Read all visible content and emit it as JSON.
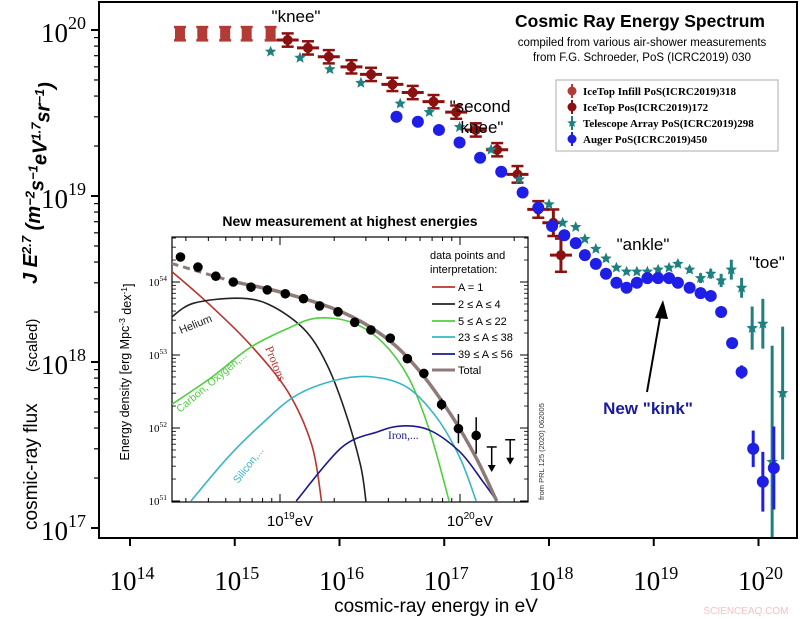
{
  "colors": {
    "icetop_infill": "#b23b35",
    "icetop": "#8b1010",
    "telescope_array": "#1f8080",
    "auger": "#1e1ee6",
    "annotation_kink": "#1a1aa0",
    "watermark": "#f2c4c4",
    "protons": "#b8342e",
    "helium": "#222222",
    "cno": "#4fcf3f",
    "silicon": "#39b6c6",
    "iron": "#1a1a8a",
    "total": "#8e7b78"
  },
  "watermark": "SCIENCEAQ.COM",
  "chart_data": [
    {
      "type": "scatter",
      "title": "Cosmic Ray Energy Spectrum",
      "subtitle": [
        "compiled from various air-shower measurements",
        "from F.G. Schroeder, PoS (ICRC2019) 030"
      ],
      "xlabel": "cosmic-ray energy in eV",
      "ylabel": "cosmic-ray flux",
      "ylabel_note": "(scaled)",
      "ylabel_formula": "J E^{2.7} (m^{−2}s^{−1}eV^{1.7}sr^{−1})",
      "xscale": "log",
      "yscale": "log",
      "xlim": [
        100000000000000.0,
        1.6e+20
      ],
      "ylim": [
        9e+16,
        1.5e+20
      ],
      "xticks": [
        100000000000000.0,
        1000000000000000.0,
        1e+16,
        1e+17,
        1e+18,
        1e+19,
        1e+20
      ],
      "xtick_labels": [
        [
          "10",
          "14"
        ],
        [
          "10",
          "15"
        ],
        [
          "10",
          "16"
        ],
        [
          "10",
          "17"
        ],
        [
          "10",
          "18"
        ],
        [
          "10",
          "19"
        ],
        [
          "10",
          "20"
        ]
      ],
      "yticks": [
        1e+17,
        1e+18,
        1e+19,
        1e+20
      ],
      "ytick_labels": [
        [
          "10",
          "17"
        ],
        [
          "10",
          "18"
        ],
        [
          "10",
          "19"
        ],
        [
          "10",
          "20"
        ]
      ],
      "grid": false,
      "legend_position": "top-right",
      "annotations": [
        {
          "text": "\"knee\""
        },
        {
          "text": "\"second"
        },
        {
          "text": "knee\""
        },
        {
          "text": "\"ankle\""
        },
        {
          "text": "\"toe\""
        },
        {
          "text": "New \"kink\""
        }
      ],
      "series": [
        {
          "name": "IceTop Infill PoS(ICRC2019)318",
          "color_key": "icetop_infill",
          "marker": "bar",
          "x": [
            300000000000000.0,
            490000000000000.0,
            810000000000000.0,
            1300000000000000.0,
            2200000000000000.0
          ],
          "y": [
            9.5e+19,
            9.5e+19,
            9.5e+19,
            9.5e+19,
            9.5e+19
          ],
          "err_dex": [
            0.04,
            0.04,
            0.04,
            0.04,
            0.04
          ]
        },
        {
          "name": "IceTop Pos(ICRC2019)172",
          "color_key": "icetop",
          "marker": "circle-hbar",
          "x": [
            3200000000000000.0,
            5000000000000000.0,
            7900000000000000.0,
            1.3e+16,
            2e+16,
            3.2e+16,
            5e+16,
            7.9e+16,
            1.3e+17,
            2e+17,
            3.2e+17,
            5e+17,
            7.9e+17,
            1.1e+18,
            1.3e+18
          ],
          "y": [
            8.7e+19,
            7.8e+19,
            6.9e+19,
            6e+19,
            5.4e+19,
            4.7e+19,
            4.2e+19,
            3.7e+19,
            3.2e+19,
            2.5e+19,
            1.9e+19,
            1.35e+19,
            8.3e+18,
            6.9e+18,
            4.4e+18
          ],
          "err_dex": [
            0.04,
            0.04,
            0.04,
            0.04,
            0.04,
            0.04,
            0.04,
            0.04,
            0.04,
            0.04,
            0.04,
            0.05,
            0.05,
            0.08,
            0.1
          ]
        },
        {
          "name": "Telescope Array PoS(ICRC2019)298",
          "color_key": "telescope_array",
          "marker": "star",
          "x": [
            2200000000000000.0,
            4200000000000000.0,
            8100000000000000.0,
            1.6e+16,
            3.8e+16,
            7.2e+16,
            1.4e+17,
            2.8e+17,
            5.2e+17,
            1e+18,
            1.35e+18,
            1.8e+18,
            2.2e+18,
            2.8e+18,
            3.5e+18,
            4.4e+18,
            5.5e+18,
            6.9e+18,
            8.7e+18,
            1.1e+19,
            1.4e+19,
            1.7e+19,
            2.2e+19,
            2.8e+19,
            3.5e+19,
            4.4e+19,
            5.5e+19,
            6.9e+19,
            8.7e+19,
            1.1e+20,
            1.35e+20,
            1.7e+20
          ],
          "y": [
            7.4e+19,
            6.8e+19,
            5.8e+19,
            4.8e+19,
            3.6e+19,
            3.2e+19,
            2.6e+19,
            1.9e+19,
            1.26e+19,
            8.9e+18,
            6.9e+18,
            6.5e+18,
            5.5e+18,
            4.8e+18,
            4.2e+18,
            3.7e+18,
            3.5e+18,
            3.5e+18,
            3.5e+18,
            3.6e+18,
            3.7e+18,
            3.9e+18,
            3.6e+18,
            3.2e+18,
            3.4e+18,
            3.1e+18,
            3.6e+18,
            2.8e+18,
            1.6e+18,
            1.7e+18,
            2.5e+17,
            6.5e+17
          ],
          "err_dex": [
            0,
            0,
            0,
            0,
            0,
            0,
            0,
            0,
            0,
            0,
            0,
            0,
            0,
            0,
            0,
            0,
            0,
            0,
            0,
            0,
            0,
            0.02,
            0.02,
            0.03,
            0.03,
            0.04,
            0.06,
            0.06,
            0.13,
            0.15,
            0.7,
            0.4
          ]
        },
        {
          "name": "Auger PoS(ICRC2019)450",
          "color_key": "auger",
          "marker": "circle",
          "x": [
            3.5e+16,
            5.6e+16,
            8.9e+16,
            1.4e+17,
            2.2e+17,
            3.5e+17,
            5.6e+17,
            7.9e+17,
            1.07e+18,
            1.4e+18,
            1.8e+18,
            2.2e+18,
            2.8e+18,
            3.5e+18,
            4.4e+18,
            5.5e+18,
            6.9e+18,
            8.7e+18,
            1.1e+19,
            1.4e+19,
            1.7e+19,
            2.2e+19,
            2.8e+19,
            3.5e+19,
            4.4e+19,
            5.6e+19,
            6.9e+19,
            8.9e+19,
            1.1e+20,
            1.4e+20
          ],
          "y": [
            3e+19,
            2.8e+19,
            2.5e+19,
            2.1e+19,
            1.7e+19,
            1.4e+19,
            1.05e+19,
            8.5e+18,
            6.6e+18,
            5.8e+18,
            5.2e+18,
            4.4e+18,
            3.9e+18,
            3.4e+18,
            3e+18,
            2.8e+18,
            3e+18,
            3.2e+18,
            3.2e+18,
            3.2e+18,
            3e+18,
            2.8e+18,
            2.6e+18,
            2.5e+18,
            2e+18,
            1.3e+18,
            8.7e+17,
            3e+17,
            1.9e+17,
            2.3e+17
          ],
          "err_dex": [
            0,
            0,
            0,
            0,
            0,
            0,
            0,
            0,
            0,
            0,
            0,
            0,
            0,
            0,
            0,
            0,
            0,
            0,
            0,
            0,
            0,
            0,
            0,
            0,
            0.01,
            0.02,
            0.04,
            0.11,
            0.18,
            0.25
          ]
        }
      ]
    },
    {
      "type": "line",
      "title": "New measurement at highest energies",
      "ylabel": "Energy density [erg Mpc^{-3} dex^{-1}]",
      "xscale": "log",
      "yscale": "log",
      "xlim": [
        2.5e+18,
        1.85e+20
      ],
      "ylim": [
        1e+51,
        4e+54
      ],
      "xticks": [
        1e+19,
        1e+20
      ],
      "xtick_labels": [
        [
          "10",
          "19",
          "eV"
        ],
        [
          "10",
          "20",
          "eV"
        ]
      ],
      "yticks": [
        1e+51,
        1e+52,
        1e+53,
        1e+54
      ],
      "ytick_labels": [
        [
          "10",
          "51"
        ],
        [
          "10",
          "52"
        ],
        [
          "10",
          "53"
        ],
        [
          "10",
          "54"
        ]
      ],
      "grid": false,
      "legend_position": "top-right",
      "legend_title": [
        "data points and",
        "interpretation:"
      ],
      "source_note": "from PRL 125 (2020) 062005",
      "points": {
        "x": [
          2.8e+18,
          3.5e+18,
          4.4e+18,
          5.5e+18,
          6.9e+18,
          8.5e+18,
          1.07e+19,
          1.35e+19,
          1.66e+19,
          2.1e+19,
          2.6e+19,
          3.2e+19,
          4.1e+19,
          5.1e+19,
          6.3e+19,
          7.9e+19,
          9.8e+19,
          1.23e+20
        ],
        "y": [
          2.2e+54,
          1.6e+54,
          1.2e+54,
          1e+54,
          8.5e+53,
          7.8e+53,
          6.9e+53,
          5.9e+53,
          4.7e+53,
          3.9e+53,
          2.8e+53,
          2.2e+53,
          1.7e+53,
          8.9e+52,
          5.6e+52,
          2.1e+52,
          9.8e+51,
          7.9e+51
        ],
        "err_dex": [
          0,
          0,
          0,
          0,
          0,
          0,
          0,
          0,
          0,
          0,
          0,
          0,
          0,
          0,
          0,
          0.08,
          0.2,
          0.25
        ]
      },
      "upper_limits": {
        "x": [
          1.5e+20,
          1.9e+20
        ],
        "y": [
          5.5e+51,
          6.9e+51
        ]
      },
      "series": [
        {
          "name": "A = 1",
          "label": "Protons",
          "color_key": "protons",
          "x": [
            2.5e+18,
            4.1e+18,
            6.8e+18,
            1.1e+19,
            1.5e+19,
            1.7e+19
          ],
          "y": [
            1.4e+54,
            4.8e+53,
            1.4e+53,
            3.2e+52,
            5.9e+51,
            1e+51
          ]
        },
        {
          "name": "2 ≤ A ≤ 4",
          "label": "Helium",
          "color_key": "helium",
          "x": [
            2.5e+18,
            3.3e+18,
            5.8e+18,
            8.7e+18,
            1.35e+19,
            1.8e+19,
            2.3e+19,
            2.8e+19,
            3e+19
          ],
          "y": [
            3.3e+53,
            5.1e+53,
            6e+53,
            4.9e+53,
            2.3e+53,
            7.9e+52,
            1.7e+52,
            3.1e+51,
            1e+51
          ]
        },
        {
          "name": "5 ≤ A ≤ 22",
          "label": "Carbon, Oxygen,...",
          "color_key": "cno",
          "x": [
            2.5e+18,
            4.1e+18,
            6.8e+18,
            1.1e+19,
            1.6e+19,
            2.5e+19,
            3.7e+19,
            5.2e+19,
            6.8e+19,
            8.7e+19
          ],
          "y": [
            2.1e+52,
            4.8e+52,
            1.26e+53,
            2.3e+53,
            3.2e+53,
            2.8e+53,
            1.5e+53,
            4.8e+52,
            8.9e+51,
            1e+51
          ]
        },
        {
          "name": "23 ≤ A ≤ 38",
          "label": "Silicon,...",
          "color_key": "silicon",
          "x": [
            3.2e+18,
            5.1e+18,
            7.8e+18,
            1.23e+19,
            2.1e+19,
            3.3e+19,
            5.1e+19,
            7.4e+19,
            1e+20,
            1.23e+20
          ],
          "y": [
            1e+51,
            3.9e+51,
            1.1e+52,
            2.8e+52,
            4.6e+52,
            5e+52,
            3.6e+52,
            1.4e+52,
            3.9e+51,
            1e+51
          ]
        },
        {
          "name": "39 ≤ A ≤ 56",
          "label": "Iron,...",
          "color_key": "iron",
          "x": [
            1.23e+19,
            2.2e+19,
            3.5e+19,
            4.8e+19,
            6.8e+19,
            1e+20,
            1.35e+20,
            1.6e+20
          ],
          "y": [
            1e+51,
            5.4e+51,
            8.9e+51,
            1.07e+52,
            9.3e+51,
            4.7e+51,
            1.8e+51,
            1e+51
          ]
        },
        {
          "name": "Total",
          "color_key": "total",
          "dashed_below_eV": 5.6e+18,
          "x": [
            2.5e+18,
            3.5e+18,
            5.6e+18,
            1.05e+19,
            2.2e+19,
            3.9e+19,
            6e+19,
            9.1e+19,
            1.23e+20,
            1.6e+20
          ],
          "y": [
            1.8e+54,
            1.4e+54,
            1e+54,
            7.1e+53,
            3.9e+53,
            1.7e+53,
            5.9e+52,
            1.4e+52,
            3.9e+51,
            1e+51
          ]
        }
      ]
    }
  ]
}
